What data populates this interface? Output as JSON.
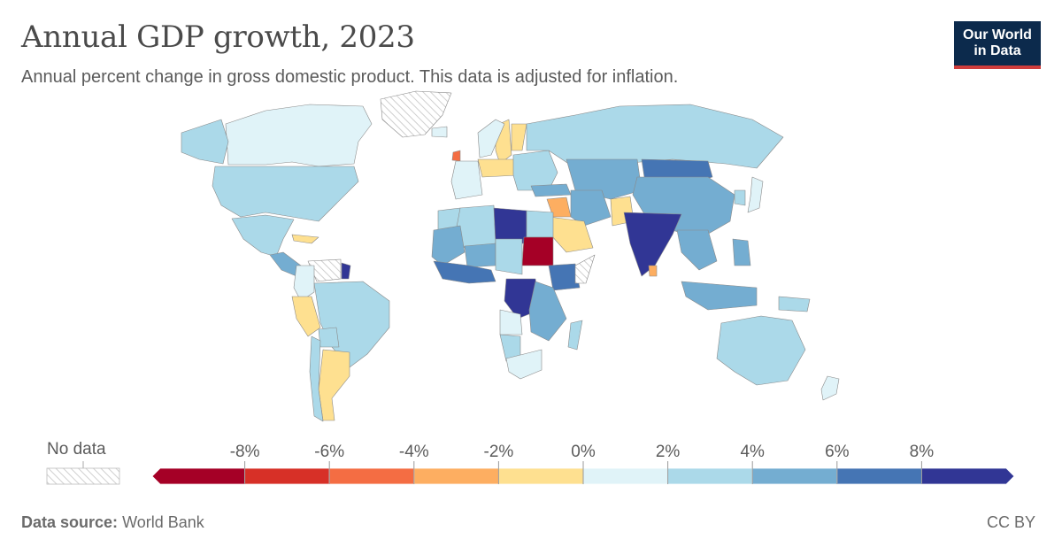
{
  "header": {
    "title": "Annual GDP growth, 2023",
    "subtitle": "Annual percent change in gross domestic product. This data is adjusted for inflation."
  },
  "logo": {
    "line1": "Our World",
    "line2": "in Data"
  },
  "legend": {
    "no_data_label": "No data",
    "ticks": [
      "-8%",
      "-6%",
      "-4%",
      "-2%",
      "0%",
      "2%",
      "4%",
      "6%",
      "8%"
    ],
    "bins": [
      {
        "range": "< -8%",
        "color": "#a50026"
      },
      {
        "range": "-8% to -6%",
        "color": "#d73027"
      },
      {
        "range": "-6% to -4%",
        "color": "#f46d43"
      },
      {
        "range": "-4% to -2%",
        "color": "#fdae61"
      },
      {
        "range": "-2% to 0%",
        "color": "#fee090"
      },
      {
        "range": "0% to 2%",
        "color": "#e0f3f8"
      },
      {
        "range": "2% to 4%",
        "color": "#abd9e9"
      },
      {
        "range": "4% to 6%",
        "color": "#74add1"
      },
      {
        "range": "6% to 8%",
        "color": "#4575b4"
      },
      {
        "range": "> 8%",
        "color": "#313695"
      }
    ]
  },
  "footer": {
    "source_label": "Data source:",
    "source_value": "World Bank",
    "license": "CC BY"
  },
  "map_regions": [
    {
      "name": "Canada",
      "color": "#e0f3f8"
    },
    {
      "name": "Alaska",
      "color": "#abd9e9"
    },
    {
      "name": "Greenland",
      "color": "no-data"
    },
    {
      "name": "United States",
      "color": "#abd9e9"
    },
    {
      "name": "Mexico",
      "color": "#abd9e9"
    },
    {
      "name": "Central America",
      "color": "#74add1"
    },
    {
      "name": "Cuba",
      "color": "#fee090"
    },
    {
      "name": "Venezuela",
      "color": "no-data"
    },
    {
      "name": "Guyana",
      "color": "#313695"
    },
    {
      "name": "Colombia",
      "color": "#e0f3f8"
    },
    {
      "name": "Peru",
      "color": "#fee090"
    },
    {
      "name": "Brazil",
      "color": "#abd9e9"
    },
    {
      "name": "Bolivia",
      "color": "#abd9e9"
    },
    {
      "name": "Argentina",
      "color": "#fee090"
    },
    {
      "name": "Chile",
      "color": "#abd9e9"
    },
    {
      "name": "Iceland",
      "color": "#e0f3f8"
    },
    {
      "name": "Ireland",
      "color": "#f46d43"
    },
    {
      "name": "Sweden",
      "color": "#fee090"
    },
    {
      "name": "Norway",
      "color": "#e0f3f8"
    },
    {
      "name": "Finland",
      "color": "#fee090"
    },
    {
      "name": "Germany",
      "color": "#fee090"
    },
    {
      "name": "Western Europe",
      "color": "#e0f3f8"
    },
    {
      "name": "Eastern Europe",
      "color": "#abd9e9"
    },
    {
      "name": "Russia",
      "color": "#abd9e9"
    },
    {
      "name": "Turkey",
      "color": "#74add1"
    },
    {
      "name": "Central Asia",
      "color": "#74add1"
    },
    {
      "name": "Mongolia",
      "color": "#4575b4"
    },
    {
      "name": "China",
      "color": "#74add1"
    },
    {
      "name": "Japan",
      "color": "#e0f3f8"
    },
    {
      "name": "Korea",
      "color": "#abd9e9"
    },
    {
      "name": "Iraq",
      "color": "#fdae61"
    },
    {
      "name": "Iran",
      "color": "#74add1"
    },
    {
      "name": "Saudi Arabia",
      "color": "#fee090"
    },
    {
      "name": "Pakistan",
      "color": "#fee090"
    },
    {
      "name": "India",
      "color": "#313695"
    },
    {
      "name": "Sri Lanka",
      "color": "#fdae61"
    },
    {
      "name": "Southeast Asia",
      "color": "#74add1"
    },
    {
      "name": "Indonesia",
      "color": "#74add1"
    },
    {
      "name": "Philippines",
      "color": "#74add1"
    },
    {
      "name": "Papua New Guinea",
      "color": "#abd9e9"
    },
    {
      "name": "Australia",
      "color": "#abd9e9"
    },
    {
      "name": "New Zealand",
      "color": "#e0f3f8"
    },
    {
      "name": "Morocco",
      "color": "#abd9e9"
    },
    {
      "name": "Algeria",
      "color": "#abd9e9"
    },
    {
      "name": "Libya",
      "color": "#313695"
    },
    {
      "name": "Egypt",
      "color": "#abd9e9"
    },
    {
      "name": "Sudan",
      "color": "#a50026"
    },
    {
      "name": "Mali",
      "color": "#74add1"
    },
    {
      "name": "Niger",
      "color": "#74add1"
    },
    {
      "name": "Chad",
      "color": "#abd9e9"
    },
    {
      "name": "West Africa",
      "color": "#4575b4"
    },
    {
      "name": "Ethiopia",
      "color": "#4575b4"
    },
    {
      "name": "Somalia",
      "color": "no-data"
    },
    {
      "name": "DR Congo",
      "color": "#313695"
    },
    {
      "name": "Angola",
      "color": "#e0f3f8"
    },
    {
      "name": "East Africa",
      "color": "#74add1"
    },
    {
      "name": "Namibia",
      "color": "#abd9e9"
    },
    {
      "name": "South Africa",
      "color": "#e0f3f8"
    },
    {
      "name": "Madagascar",
      "color": "#abd9e9"
    }
  ]
}
